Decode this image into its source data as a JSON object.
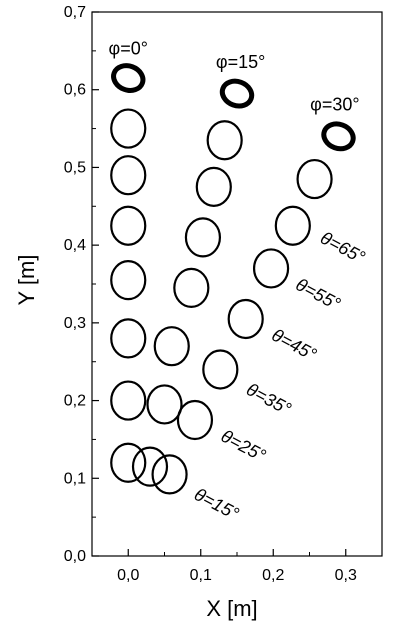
{
  "chart_data": {
    "type": "scatter",
    "xlabel": "X [m]",
    "ylabel": "Y [m]",
    "xlim": [
      -0.05,
      0.35
    ],
    "ylim": [
      0.0,
      0.7
    ],
    "xticks": [
      "0,0",
      "0,1",
      "0,2",
      "0,3"
    ],
    "yticks": [
      "0,0",
      "0,1",
      "0,2",
      "0,3",
      "0,4",
      "0,5",
      "0,6",
      "0,7"
    ],
    "grid": false,
    "series": [
      {
        "name": "φ=0°",
        "points": [
          {
            "x": 0.0,
            "y": 0.12
          },
          {
            "x": 0.0,
            "y": 0.2
          },
          {
            "x": 0.0,
            "y": 0.28
          },
          {
            "x": 0.0,
            "y": 0.355
          },
          {
            "x": 0.0,
            "y": 0.425
          },
          {
            "x": 0.0,
            "y": 0.49
          },
          {
            "x": 0.0,
            "y": 0.55
          },
          {
            "x": 0.0,
            "y": 0.615
          }
        ]
      },
      {
        "name": "φ=15°",
        "points": [
          {
            "x": 0.03,
            "y": 0.115
          },
          {
            "x": 0.05,
            "y": 0.195
          },
          {
            "x": 0.06,
            "y": 0.27
          },
          {
            "x": 0.087,
            "y": 0.345
          },
          {
            "x": 0.103,
            "y": 0.41
          },
          {
            "x": 0.118,
            "y": 0.475
          },
          {
            "x": 0.133,
            "y": 0.535
          },
          {
            "x": 0.15,
            "y": 0.595
          }
        ]
      },
      {
        "name": "φ=30°",
        "points": [
          {
            "x": 0.057,
            "y": 0.105
          },
          {
            "x": 0.092,
            "y": 0.175
          },
          {
            "x": 0.127,
            "y": 0.24
          },
          {
            "x": 0.162,
            "y": 0.305
          },
          {
            "x": 0.197,
            "y": 0.37
          },
          {
            "x": 0.227,
            "y": 0.425
          },
          {
            "x": 0.257,
            "y": 0.485
          },
          {
            "x": 0.29,
            "y": 0.54
          }
        ]
      }
    ],
    "annotations": {
      "phi": [
        {
          "text": "φ=0°",
          "x": 0.0,
          "y": 0.645
        },
        {
          "text": "φ=15°",
          "x": 0.155,
          "y": 0.628
        },
        {
          "text": "φ=30°",
          "x": 0.285,
          "y": 0.573
        }
      ],
      "theta": [
        {
          "text": "θ=15°",
          "x": 0.118,
          "y": 0.06
        },
        {
          "text": "θ=25°",
          "x": 0.155,
          "y": 0.135
        },
        {
          "text": "θ=35°",
          "x": 0.19,
          "y": 0.195
        },
        {
          "text": "θ=45°",
          "x": 0.225,
          "y": 0.265
        },
        {
          "text": "θ=55°",
          "x": 0.258,
          "y": 0.33
        },
        {
          "text": "θ=65°",
          "x": 0.292,
          "y": 0.39
        }
      ]
    }
  }
}
